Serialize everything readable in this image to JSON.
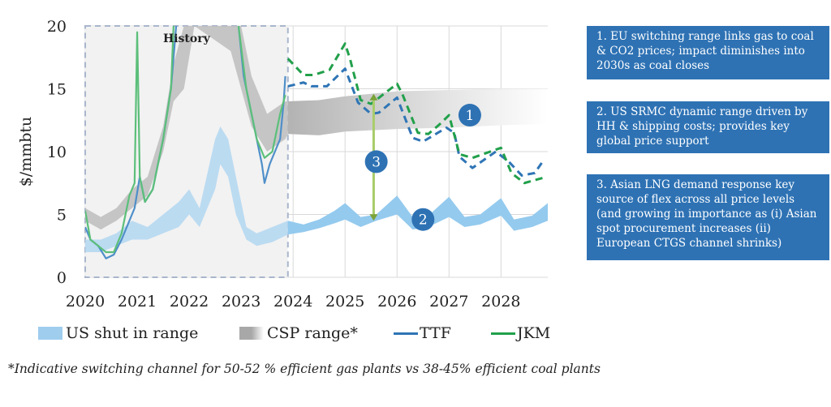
{
  "chart_data": {
    "type": "line",
    "ylabel": "$/mmbtu",
    "ylim": [
      0,
      20
    ],
    "xlim": [
      2020,
      2028.9
    ],
    "yticks": [
      "0",
      "5",
      "10",
      "15",
      "20"
    ],
    "xticks": [
      "2020",
      "2021",
      "2022",
      "2023",
      "2024",
      "2025",
      "2026",
      "2027",
      "2028"
    ],
    "grid": true,
    "legend_position": "bottom",
    "history_label": "History",
    "history_range": [
      2020,
      2023.9
    ],
    "colors": {
      "ttf": "#2f75b5",
      "jkm": "#22a04b",
      "shut_in": "#9fcdee",
      "csp": "#b3b3b3",
      "marker": "#2e72b4",
      "arrow": "#7ba33a"
    },
    "series": [
      {
        "name": "TTF",
        "style": "line",
        "history": [
          [
            2020,
            4
          ],
          [
            2020.1,
            3
          ],
          [
            2020.25,
            2.5
          ],
          [
            2020.4,
            1.5
          ],
          [
            2020.55,
            1.8
          ],
          [
            2020.7,
            3
          ],
          [
            2020.85,
            4.5
          ],
          [
            2020.95,
            5.5
          ],
          [
            2021.05,
            8
          ],
          [
            2021.15,
            6
          ],
          [
            2021.3,
            7
          ],
          [
            2021.5,
            11
          ],
          [
            2021.65,
            15
          ],
          [
            2021.75,
            20
          ],
          [
            2021.8,
            25
          ],
          [
            2022.9,
            25
          ],
          [
            2022.95,
            20
          ],
          [
            2023.05,
            16
          ],
          [
            2023.15,
            14
          ],
          [
            2023.3,
            11
          ],
          [
            2023.4,
            9
          ],
          [
            2023.45,
            7.5
          ],
          [
            2023.55,
            9
          ],
          [
            2023.65,
            10
          ],
          [
            2023.75,
            11
          ],
          [
            2023.82,
            14
          ],
          [
            2023.85,
            16
          ]
        ],
        "forecast": [
          [
            2023.9,
            15.2
          ],
          [
            2024.2,
            15.5
          ],
          [
            2024.35,
            15.2
          ],
          [
            2024.65,
            15.2
          ],
          [
            2025.0,
            16.6
          ],
          [
            2025.25,
            13.9
          ],
          [
            2025.5,
            13.0
          ],
          [
            2025.65,
            13.1
          ],
          [
            2026.0,
            14.3
          ],
          [
            2026.3,
            11.1
          ],
          [
            2026.5,
            10.8
          ],
          [
            2026.95,
            11.9
          ],
          [
            2027.1,
            11.5
          ],
          [
            2027.2,
            9.6
          ],
          [
            2027.45,
            8.7
          ],
          [
            2027.9,
            10.0
          ],
          [
            2028.15,
            9.2
          ],
          [
            2028.4,
            8.1
          ],
          [
            2028.65,
            8.3
          ],
          [
            2028.8,
            9.2
          ]
        ]
      },
      {
        "name": "JKM",
        "style": "line",
        "history": [
          [
            2020,
            5.3
          ],
          [
            2020.1,
            3
          ],
          [
            2020.25,
            2.5
          ],
          [
            2020.4,
            2
          ],
          [
            2020.55,
            2
          ],
          [
            2020.7,
            3.5
          ],
          [
            2020.85,
            6.5
          ],
          [
            2020.95,
            7.5
          ],
          [
            2021.0,
            19.5
          ],
          [
            2021.02,
            15
          ],
          [
            2021.05,
            8
          ],
          [
            2021.15,
            6
          ],
          [
            2021.3,
            7
          ],
          [
            2021.5,
            11
          ],
          [
            2021.65,
            15
          ],
          [
            2021.7,
            20
          ],
          [
            2021.75,
            25
          ],
          [
            2022.9,
            25
          ],
          [
            2022.95,
            20
          ],
          [
            2023.1,
            15
          ],
          [
            2023.3,
            11
          ],
          [
            2023.45,
            9.5
          ],
          [
            2023.6,
            10
          ],
          [
            2023.75,
            13
          ],
          [
            2023.85,
            14.5
          ]
        ],
        "forecast": [
          [
            2023.9,
            17.4
          ],
          [
            2024.2,
            16.1
          ],
          [
            2024.4,
            16.1
          ],
          [
            2024.7,
            16.5
          ],
          [
            2025.0,
            18.6
          ],
          [
            2025.1,
            17.3
          ],
          [
            2025.3,
            14.1
          ],
          [
            2025.5,
            13.8
          ],
          [
            2026.0,
            15.4
          ],
          [
            2026.1,
            14.6
          ],
          [
            2026.4,
            11.5
          ],
          [
            2026.6,
            11.4
          ],
          [
            2026.8,
            12.1
          ],
          [
            2027.0,
            12.9
          ],
          [
            2027.2,
            9.8
          ],
          [
            2027.45,
            9.5
          ],
          [
            2028.0,
            10.3
          ],
          [
            2028.2,
            8.3
          ],
          [
            2028.45,
            7.5
          ],
          [
            2028.8,
            7.9
          ]
        ]
      },
      {
        "name": "US shut in range",
        "style": "band",
        "data": [
          [
            2020,
            2,
            3
          ],
          [
            2020.3,
            2,
            3
          ],
          [
            2020.6,
            2.5,
            3.5
          ],
          [
            2020.9,
            3,
            4.5
          ],
          [
            2021.2,
            3,
            4
          ],
          [
            2021.5,
            3.5,
            5
          ],
          [
            2021.8,
            4,
            6
          ],
          [
            2022.0,
            5,
            7
          ],
          [
            2022.2,
            4,
            5.5
          ],
          [
            2022.5,
            7,
            11
          ],
          [
            2022.6,
            9,
            12
          ],
          [
            2022.75,
            8,
            11
          ],
          [
            2022.9,
            5,
            8
          ],
          [
            2023.1,
            3,
            4
          ],
          [
            2023.3,
            2.5,
            3.5
          ],
          [
            2023.6,
            2.8,
            4
          ],
          [
            2023.9,
            3.4,
            4.5
          ],
          [
            2024.2,
            3.6,
            4.2
          ],
          [
            2024.5,
            3.9,
            4.6
          ],
          [
            2024.8,
            4.3,
            5.3
          ],
          [
            2025,
            4.6,
            5.9
          ],
          [
            2025.3,
            4,
            4.8
          ],
          [
            2025.6,
            4.5,
            5
          ],
          [
            2026,
            5,
            6.5
          ],
          [
            2026.3,
            3.8,
            4.8
          ],
          [
            2026.6,
            4,
            4.9
          ],
          [
            2027,
            4.8,
            6.4
          ],
          [
            2027.3,
            4,
            4.8
          ],
          [
            2027.6,
            4.2,
            5
          ],
          [
            2028,
            4.9,
            6.3
          ],
          [
            2028.25,
            3.7,
            4.6
          ],
          [
            2028.6,
            4,
            4.9
          ],
          [
            2028.9,
            4.5,
            5.9
          ]
        ]
      },
      {
        "name": "CSP range*",
        "style": "band",
        "data": [
          [
            2020,
            4.5,
            5.5
          ],
          [
            2020.3,
            3.8,
            4.8
          ],
          [
            2020.6,
            4.5,
            5.5
          ],
          [
            2020.9,
            5.5,
            7
          ],
          [
            2021.2,
            6.5,
            8
          ],
          [
            2021.5,
            10,
            12
          ],
          [
            2021.7,
            14,
            17
          ],
          [
            2021.9,
            15,
            20
          ],
          [
            2022.1,
            20,
            25
          ],
          [
            2022.8,
            18,
            25
          ],
          [
            2023.0,
            15,
            20
          ],
          [
            2023.2,
            12,
            16
          ],
          [
            2023.5,
            10,
            13
          ],
          [
            2023.85,
            11,
            14
          ],
          [
            2023.9,
            11.4,
            14
          ],
          [
            2024.5,
            11.3,
            14.1
          ],
          [
            2025,
            11.6,
            14.4
          ],
          [
            2026,
            11.8,
            14.8
          ],
          [
            2027,
            11.9,
            14.9
          ],
          [
            2028,
            12.1,
            15
          ],
          [
            2028.9,
            12.2,
            15
          ]
        ]
      }
    ],
    "markers": [
      {
        "label": "1",
        "x": 2027.4,
        "y": 12.9
      },
      {
        "label": "2",
        "x": 2026.5,
        "y": 4.6
      },
      {
        "label": "3",
        "x": 2025.6,
        "y": 9.2
      }
    ],
    "arrow": {
      "x": 2025.55,
      "from": 4.5,
      "to": 14.6
    }
  },
  "legend": {
    "shut_in": "US shut in range",
    "csp": "CSP range*",
    "ttf": "TTF",
    "jkm": "JKM"
  },
  "notes": [
    "1. EU switching range links gas to coal & CO2 prices; impact diminishes into 2030s as coal closes",
    "2. US SRMC dynamic range driven by HH & shipping costs; provides key global price support",
    "3. Asian LNG demand response key source of flex across all price levels (and growing in importance as (i) Asian spot procurement increases (ii) European CTGS channel shrinks)"
  ],
  "footnote": "*Indicative switching channel for 50-52 % efficient gas plants vs 38-45% efficient coal plants"
}
